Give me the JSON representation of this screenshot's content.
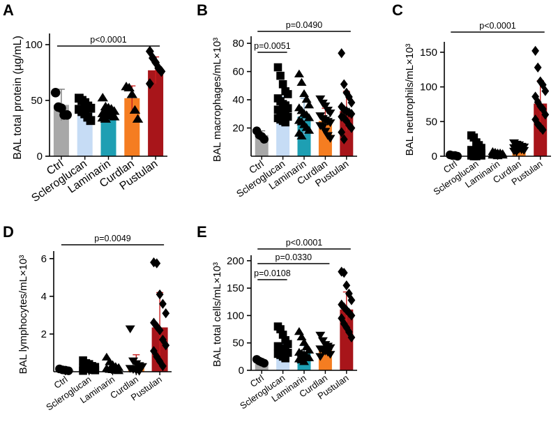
{
  "figure": {
    "categories": [
      "Ctrl",
      "Scleroglucan",
      "Laminarin",
      "Curdlan",
      "Pustulan"
    ],
    "colors": {
      "Ctrl": "#a8a8a8",
      "Scleroglucan": "#c6dcf5",
      "Laminarin": "#1e9fb3",
      "Curdlan": "#f57d21",
      "Pustulan": "#a8151a",
      "errorbar": "#c81e1e"
    }
  },
  "chart_data": [
    {
      "panel": "A",
      "type": "bar",
      "ylabel": "BAL total protein (µg/mL)",
      "ylim": [
        0,
        110
      ],
      "yticks": [
        0,
        50,
        100
      ],
      "tick_labels": [
        "0",
        "50",
        "100"
      ],
      "categories": [
        "Ctrl",
        "Scleroglucan",
        "Laminarin",
        "Curdlan",
        "Pustulan"
      ],
      "means": [
        46,
        41,
        38,
        52,
        77
      ],
      "sd": [
        14,
        10,
        5,
        11,
        12
      ],
      "points": [
        [
          57,
          44,
          43,
          37,
          37
        ],
        [
          52,
          50,
          48,
          45,
          43,
          42,
          40,
          38,
          35,
          32
        ],
        [
          52,
          44,
          43,
          42,
          40,
          38,
          37,
          37,
          36,
          35,
          34,
          33
        ],
        [
          62,
          61,
          55,
          41,
          33
        ],
        [
          94,
          88,
          84,
          79,
          76,
          65
        ]
      ],
      "comparisons": [
        {
          "from": "Ctrl",
          "to": "Pustulan",
          "label": "p<0.0001"
        }
      ]
    },
    {
      "panel": "B",
      "type": "bar",
      "ylabel": "BAL macrophages/mL×10³",
      "ylim": [
        0,
        85
      ],
      "yticks": [
        20,
        40,
        60,
        80
      ],
      "tick_labels": [
        "20",
        "40",
        "60",
        "80"
      ],
      "categories": [
        "Ctrl",
        "Scleroglucan",
        "Laminarin",
        "Curdlan",
        "Pustulan"
      ],
      "means": [
        15,
        33,
        28,
        25,
        32
      ],
      "sd": [
        3,
        9,
        13,
        9,
        14
      ],
      "points": [
        [
          18,
          15,
          14,
          12
        ],
        [
          63,
          57,
          51,
          46,
          44,
          41,
          39,
          37,
          36,
          34,
          33,
          32,
          31,
          30,
          28,
          27,
          26,
          25,
          24
        ],
        [
          58,
          52,
          44,
          40,
          36,
          34,
          32,
          30,
          29,
          27,
          25,
          24,
          22,
          20,
          18,
          16,
          14
        ],
        [
          41,
          38,
          36,
          33,
          31,
          29,
          27,
          26,
          25,
          24,
          22,
          21,
          18,
          15,
          13
        ],
        [
          73,
          51,
          45,
          42,
          38,
          35,
          33,
          32,
          31,
          30,
          28,
          27,
          25,
          22,
          20,
          17,
          12
        ]
      ],
      "comparisons": [
        {
          "from": "Ctrl",
          "to": "Pustulan",
          "label": "p=0.0490"
        },
        {
          "from": "Ctrl",
          "to": "Scleroglucan",
          "label": "p=0.0051"
        }
      ]
    },
    {
      "panel": "C",
      "type": "bar",
      "ylabel": "BAL neutrophils/mL×10³",
      "ylim": [
        0,
        165
      ],
      "yticks": [
        0,
        50,
        100,
        150
      ],
      "tick_labels": [
        "0",
        "50",
        "100",
        "150"
      ],
      "categories": [
        "Ctrl",
        "Scleroglucan",
        "Laminarin",
        "Curdlan",
        "Pustulan"
      ],
      "means": [
        1,
        6,
        3,
        12,
        76
      ],
      "sd": [
        1,
        8,
        2,
        5,
        33
      ],
      "points": [
        [
          2,
          1,
          1,
          0
        ],
        [
          30,
          27,
          20,
          16,
          12,
          9,
          7,
          6,
          5,
          4,
          3,
          3,
          2,
          2,
          1,
          1,
          0,
          0
        ],
        [
          6,
          5,
          4,
          4,
          3,
          3,
          2,
          2,
          2,
          1,
          1,
          1,
          0
        ],
        [
          20,
          18,
          17,
          15,
          14,
          13,
          12,
          11,
          10,
          9,
          8,
          7
        ],
        [
          152,
          128,
          108,
          103,
          94,
          86,
          78,
          72,
          68,
          60,
          53,
          46,
          42,
          38
        ]
      ],
      "comparisons": [
        {
          "from": "Ctrl",
          "to": "Pustulan",
          "label": "p<0.0001"
        }
      ]
    },
    {
      "panel": "D",
      "type": "bar",
      "ylabel": "BAL lymphocytes/mL×10³",
      "ylim": [
        0,
        6.4
      ],
      "yticks": [
        2,
        4,
        6
      ],
      "tick_labels": [
        "2",
        "4",
        "6"
      ],
      "categories": [
        "Ctrl",
        "Scleroglucan",
        "Laminarin",
        "Curdlan",
        "Pustulan"
      ],
      "means": [
        0.1,
        0.2,
        0.15,
        0.3,
        2.35
      ],
      "sd": [
        0.05,
        0.15,
        0.2,
        0.6,
        1.85
      ],
      "points": [
        [
          0.15,
          0.1,
          0.08,
          0.05
        ],
        [
          0.6,
          0.45,
          0.4,
          0.3,
          0.25,
          0.2,
          0.18,
          0.15,
          0.1,
          0.08,
          0.05
        ],
        [
          0.75,
          0.5,
          0.35,
          0.25,
          0.2,
          0.15,
          0.1,
          0.08,
          0.05,
          0.03
        ],
        [
          2.3,
          0.6,
          0.45,
          0.35,
          0.3,
          0.2,
          0.15,
          0.1,
          0.05
        ],
        [
          5.8,
          5.75,
          4.1,
          3.6,
          3.1,
          2.6,
          2.4,
          2.2,
          1.7,
          1.4,
          1.1,
          0.8,
          0.55,
          0.3
        ]
      ],
      "comparisons": [
        {
          "from": "Ctrl",
          "to": "Pustulan",
          "label": "p=0.0049"
        }
      ]
    },
    {
      "panel": "E",
      "type": "bar",
      "ylabel": "BAL total cells/mL×10³",
      "ylim": [
        0,
        210
      ],
      "yticks": [
        0,
        50,
        100,
        150,
        200
      ],
      "tick_labels": [
        "0",
        "50",
        "100",
        "150",
        "200"
      ],
      "categories": [
        "Ctrl",
        "Scleroglucan",
        "Laminarin",
        "Curdlan",
        "Pustulan"
      ],
      "means": [
        16,
        42,
        31,
        40,
        111
      ],
      "sd": [
        3,
        18,
        14,
        10,
        32
      ],
      "points": [
        [
          20,
          17,
          15,
          13
        ],
        [
          80,
          75,
          65,
          55,
          48,
          44,
          40,
          38,
          35,
          32,
          30,
          28,
          25,
          22
        ],
        [
          70,
          60,
          50,
          42,
          36,
          32,
          30,
          28,
          25,
          22,
          20,
          18,
          15
        ],
        [
          65,
          55,
          48,
          45,
          42,
          40,
          38,
          36,
          34,
          30,
          26
        ],
        [
          180,
          178,
          155,
          140,
          128,
          120,
          115,
          110,
          105,
          100,
          95,
          85,
          78,
          70,
          60
        ]
      ],
      "comparisons": [
        {
          "from": "Ctrl",
          "to": "Pustulan",
          "label": "p<0.0001"
        },
        {
          "from": "Ctrl",
          "to": "Curdlan",
          "label": "p=0.0330"
        },
        {
          "from": "Ctrl",
          "to": "Scleroglucan",
          "label": "p=0.0108"
        }
      ]
    }
  ]
}
